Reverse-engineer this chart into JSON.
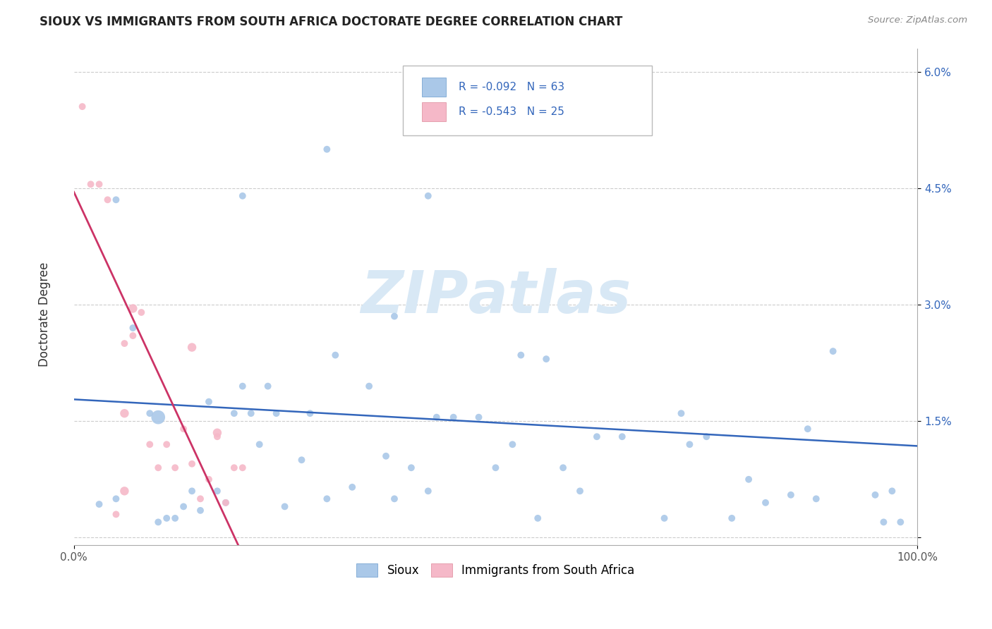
{
  "title": "SIOUX VS IMMIGRANTS FROM SOUTH AFRICA DOCTORATE DEGREE CORRELATION CHART",
  "source": "Source: ZipAtlas.com",
  "ylabel": "Doctorate Degree",
  "yticks": [
    0.0,
    0.015,
    0.03,
    0.045,
    0.06
  ],
  "ytick_labels": [
    "",
    "1.5%",
    "3.0%",
    "4.5%",
    "6.0%"
  ],
  "xmin": 0.0,
  "xmax": 1.0,
  "ymin": -0.001,
  "ymax": 0.063,
  "legend_r1": "R = -0.092",
  "legend_n1": "N = 63",
  "legend_r2": "R = -0.543",
  "legend_n2": "N = 25",
  "sioux_color": "#aac8e8",
  "immigrants_color": "#f5b8c8",
  "sioux_edge_color": "#aac8e8",
  "immigrants_edge_color": "#f5b8c8",
  "sioux_line_color": "#3366bb",
  "immigrants_line_color": "#cc3366",
  "sioux_label": "Sioux",
  "immigrants_label": "Immigrants from South Africa",
  "blue_line_x": [
    0.0,
    1.0
  ],
  "blue_line_y": [
    0.0178,
    0.0118
  ],
  "pink_line_x": [
    0.0,
    0.195
  ],
  "pink_line_y": [
    0.0445,
    -0.001
  ],
  "sioux_x": [
    0.03,
    0.05,
    0.07,
    0.09,
    0.1,
    0.11,
    0.12,
    0.13,
    0.14,
    0.15,
    0.16,
    0.17,
    0.18,
    0.19,
    0.2,
    0.21,
    0.22,
    0.23,
    0.24,
    0.25,
    0.27,
    0.28,
    0.3,
    0.31,
    0.33,
    0.35,
    0.37,
    0.38,
    0.4,
    0.42,
    0.43,
    0.45,
    0.48,
    0.5,
    0.52,
    0.55,
    0.56,
    0.58,
    0.6,
    0.62,
    0.65,
    0.7,
    0.72,
    0.73,
    0.75,
    0.78,
    0.8,
    0.82,
    0.85,
    0.87,
    0.88,
    0.9,
    0.95,
    0.96,
    0.97,
    0.98,
    0.53,
    0.42,
    0.3,
    0.2,
    0.1,
    0.05,
    0.38
  ],
  "sioux_y": [
    0.0043,
    0.0435,
    0.027,
    0.016,
    0.002,
    0.0025,
    0.0025,
    0.004,
    0.006,
    0.0035,
    0.0175,
    0.006,
    0.0045,
    0.016,
    0.0195,
    0.016,
    0.012,
    0.0195,
    0.016,
    0.004,
    0.01,
    0.016,
    0.005,
    0.0235,
    0.0065,
    0.0195,
    0.0105,
    0.005,
    0.009,
    0.006,
    0.0155,
    0.0155,
    0.0155,
    0.009,
    0.012,
    0.0025,
    0.023,
    0.009,
    0.006,
    0.013,
    0.013,
    0.0025,
    0.016,
    0.012,
    0.013,
    0.0025,
    0.0075,
    0.0045,
    0.0055,
    0.014,
    0.005,
    0.024,
    0.0055,
    0.002,
    0.006,
    0.002,
    0.0235,
    0.044,
    0.05,
    0.044,
    0.0155,
    0.005,
    0.0285
  ],
  "sioux_sizes": [
    50,
    50,
    50,
    50,
    50,
    50,
    50,
    50,
    50,
    50,
    50,
    50,
    50,
    50,
    50,
    50,
    50,
    50,
    50,
    50,
    50,
    50,
    50,
    50,
    50,
    50,
    50,
    50,
    50,
    50,
    50,
    50,
    50,
    50,
    50,
    50,
    50,
    50,
    50,
    50,
    50,
    50,
    50,
    50,
    50,
    50,
    50,
    50,
    50,
    50,
    50,
    50,
    50,
    50,
    50,
    50,
    50,
    50,
    50,
    50,
    200,
    50,
    50
  ],
  "immigrants_x": [
    0.01,
    0.02,
    0.03,
    0.04,
    0.05,
    0.06,
    0.07,
    0.08,
    0.09,
    0.1,
    0.11,
    0.12,
    0.13,
    0.14,
    0.15,
    0.16,
    0.17,
    0.18,
    0.19,
    0.2,
    0.14,
    0.07,
    0.06,
    0.06,
    0.17
  ],
  "immigrants_y": [
    0.0555,
    0.0455,
    0.0455,
    0.0435,
    0.003,
    0.025,
    0.026,
    0.029,
    0.012,
    0.009,
    0.012,
    0.009,
    0.014,
    0.0095,
    0.005,
    0.0075,
    0.013,
    0.0045,
    0.009,
    0.009,
    0.0245,
    0.0295,
    0.016,
    0.006,
    0.0135
  ],
  "immigrants_sizes": [
    50,
    50,
    50,
    50,
    50,
    50,
    50,
    50,
    50,
    50,
    50,
    50,
    50,
    50,
    50,
    50,
    50,
    50,
    50,
    50,
    80,
    80,
    80,
    80,
    80
  ]
}
